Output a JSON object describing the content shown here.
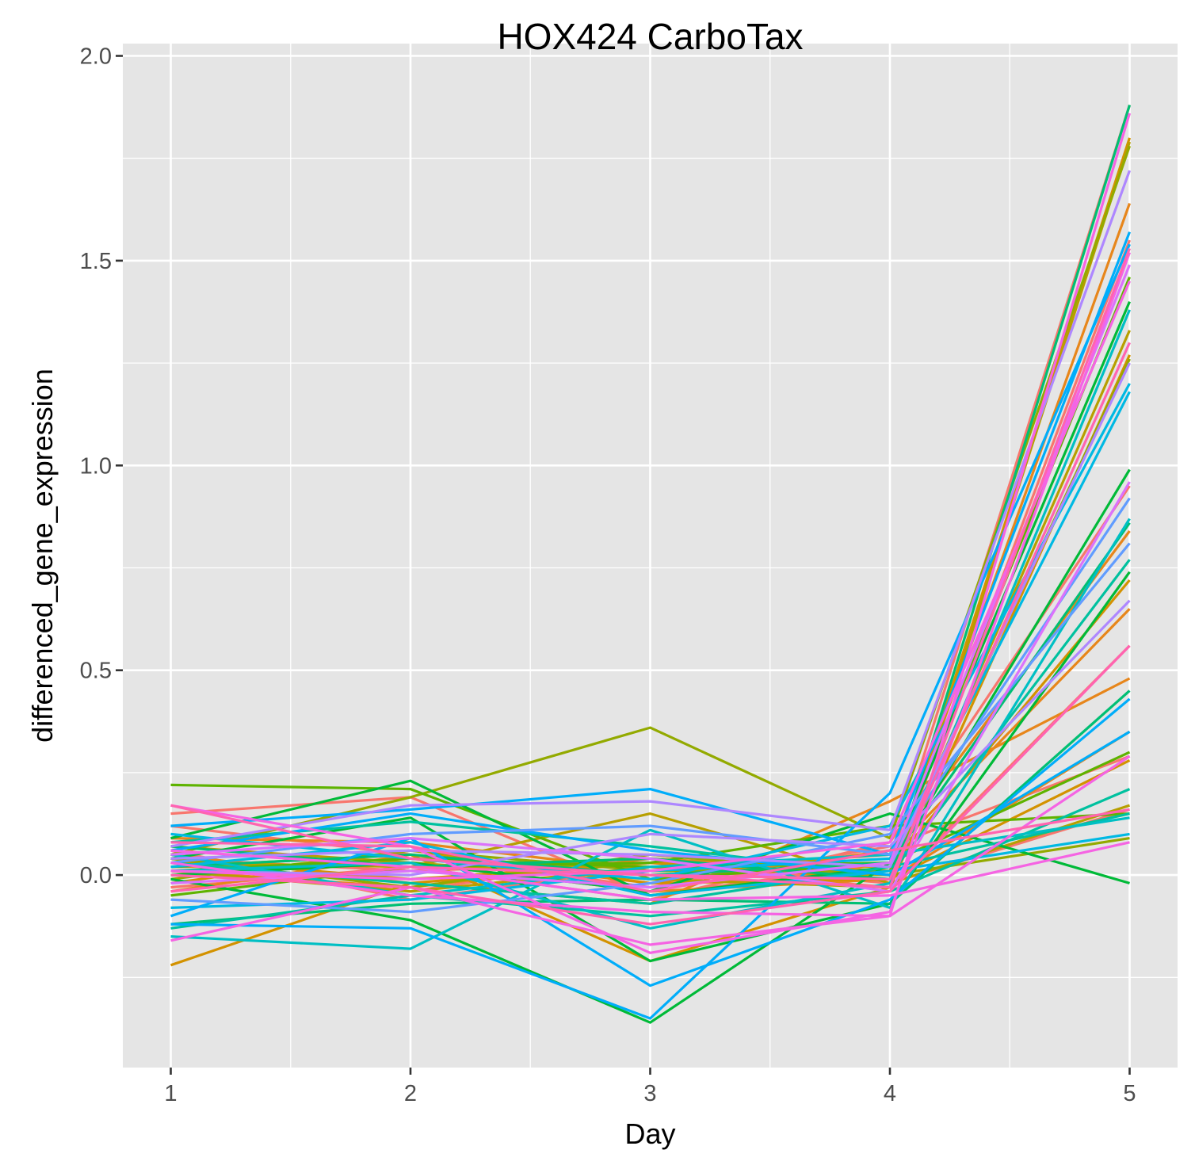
{
  "chart_data": {
    "type": "line",
    "title": "HOX424 CarboTax",
    "xlabel": "Day",
    "ylabel": "differenced_gene_expression",
    "x": [
      1,
      2,
      3,
      4,
      5
    ],
    "x_tick_labels": [
      "1",
      "2",
      "3",
      "4",
      "5"
    ],
    "y_ticks": [
      0.0,
      0.5,
      1.0,
      1.5,
      2.0
    ],
    "y_tick_labels": [
      "0.0",
      "0.5",
      "1.0",
      "1.5",
      "2.0"
    ],
    "xlim": [
      0.8,
      5.2
    ],
    "ylim": [
      -0.47,
      2.03
    ],
    "grid": true,
    "legend": "none",
    "background": "#e5e5e5",
    "series": [
      {
        "color": "#F8766D",
        "values": [
          0.15,
          0.19,
          -0.05,
          0.03,
          1.88
        ]
      },
      {
        "color": "#F8766D",
        "values": [
          0.03,
          -0.04,
          0.05,
          0.0,
          1.55
        ]
      },
      {
        "color": "#F8766D",
        "values": [
          -0.03,
          0.02,
          -0.06,
          0.08,
          0.95
        ]
      },
      {
        "color": "#F8766D",
        "values": [
          0.06,
          -0.06,
          0.02,
          -0.03,
          0.56
        ]
      },
      {
        "color": "#F8766D",
        "values": [
          0.12,
          0.05,
          -0.03,
          0.07,
          0.29
        ]
      },
      {
        "color": "#F8766D",
        "values": [
          0.04,
          0.01,
          0.03,
          -0.02,
          0.16
        ]
      },
      {
        "color": "#E7861B",
        "values": [
          0.01,
          -0.03,
          0.04,
          0.01,
          1.64
        ]
      },
      {
        "color": "#E7861B",
        "values": [
          -0.04,
          0.05,
          -0.02,
          0.06,
          0.84
        ]
      },
      {
        "color": "#E7861B",
        "values": [
          0.05,
          -0.02,
          -0.07,
          0.18,
          0.48
        ]
      },
      {
        "color": "#E7861B",
        "values": [
          0.09,
          0.08,
          0.01,
          0.05,
          0.65
        ]
      },
      {
        "color": "#E7861B",
        "values": [
          0.02,
          0.03,
          -0.04,
          -0.01,
          0.35
        ]
      },
      {
        "color": "#D39200",
        "values": [
          -0.22,
          -0.02,
          0.03,
          -0.01,
          1.8
        ]
      },
      {
        "color": "#D39200",
        "values": [
          0.02,
          0.05,
          -0.21,
          -0.03,
          1.27
        ]
      },
      {
        "color": "#D39200",
        "values": [
          0.04,
          -0.01,
          0.03,
          0.02,
          0.72
        ]
      },
      {
        "color": "#D39200",
        "values": [
          -0.02,
          0.06,
          -0.02,
          -0.01,
          0.28
        ]
      },
      {
        "color": "#B79F00",
        "values": [
          0.07,
          0.03,
          -0.01,
          -0.03,
          1.79
        ]
      },
      {
        "color": "#B79F00",
        "values": [
          0.01,
          -0.04,
          0.02,
          0.0,
          1.33
        ]
      },
      {
        "color": "#B79F00",
        "values": [
          0.03,
          0.02,
          0.15,
          -0.02,
          0.17
        ]
      },
      {
        "color": "#93AA00",
        "values": [
          0.05,
          0.19,
          0.36,
          0.09,
          1.78
        ]
      },
      {
        "color": "#93AA00",
        "values": [
          -0.01,
          0.06,
          0.01,
          0.01,
          1.26
        ]
      },
      {
        "color": "#93AA00",
        "values": [
          0.04,
          -0.03,
          0.05,
          0.0,
          0.09
        ]
      },
      {
        "color": "#5EB300",
        "values": [
          0.22,
          0.21,
          -0.01,
          0.03,
          1.46
        ]
      },
      {
        "color": "#5EB300",
        "values": [
          0.01,
          0.04,
          0.02,
          0.03,
          0.3
        ]
      },
      {
        "color": "#5EB300",
        "values": [
          -0.05,
          0.02,
          0.03,
          0.12,
          0.15
        ]
      },
      {
        "color": "#00BA38",
        "values": [
          0.09,
          0.23,
          -0.05,
          0.02,
          0.99
        ]
      },
      {
        "color": "#00BA38",
        "values": [
          -0.01,
          -0.11,
          -0.36,
          0.03,
          1.4
        ]
      },
      {
        "color": "#00BA38",
        "values": [
          0.04,
          0.14,
          -0.21,
          -0.07,
          0.74
        ]
      },
      {
        "color": "#00BA38",
        "values": [
          0.0,
          0.03,
          -0.04,
          0.15,
          -0.02
        ]
      },
      {
        "color": "#00BF74",
        "values": [
          0.02,
          0.05,
          0.0,
          0.03,
          0.86
        ]
      },
      {
        "color": "#00BF74",
        "values": [
          -0.12,
          -0.07,
          -0.06,
          -0.07,
          0.45
        ]
      },
      {
        "color": "#00BF74",
        "values": [
          0.07,
          0.02,
          0.04,
          -0.01,
          1.88
        ]
      },
      {
        "color": "#00C19F",
        "values": [
          0.08,
          0.13,
          0.07,
          0.0,
          0.77
        ]
      },
      {
        "color": "#00C19F",
        "values": [
          -0.13,
          -0.05,
          -0.1,
          -0.04,
          0.21
        ]
      },
      {
        "color": "#00C19F",
        "values": [
          0.03,
          -0.02,
          -0.07,
          0.02,
          0.15
        ]
      },
      {
        "color": "#00BFC4",
        "values": [
          -0.15,
          -0.18,
          0.11,
          -0.08,
          0.87
        ]
      },
      {
        "color": "#00BFC4",
        "values": [
          0.01,
          0.03,
          -0.13,
          -0.02,
          1.38
        ]
      },
      {
        "color": "#00BFC4",
        "values": [
          0.05,
          -0.05,
          0.02,
          0.05,
          0.14
        ]
      },
      {
        "color": "#00B9E3",
        "values": [
          0.1,
          0.04,
          -0.01,
          0.12,
          1.2
        ]
      },
      {
        "color": "#00B9E3",
        "values": [
          -0.08,
          -0.06,
          0.01,
          0.04,
          1.18
        ]
      },
      {
        "color": "#00B9E3",
        "values": [
          0.02,
          0.08,
          -0.05,
          0.01,
          0.1
        ]
      },
      {
        "color": "#00ADFA",
        "values": [
          0.12,
          0.16,
          0.21,
          0.05,
          1.57
        ]
      },
      {
        "color": "#00ADFA",
        "values": [
          -0.12,
          -0.13,
          -0.35,
          0.2,
          1.54
        ]
      },
      {
        "color": "#00ADFA",
        "values": [
          -0.1,
          0.09,
          -0.27,
          -0.06,
          0.43
        ]
      },
      {
        "color": "#00ADFA",
        "values": [
          0.06,
          0.15,
          0.06,
          0.0,
          0.35
        ]
      },
      {
        "color": "#619CFF",
        "values": [
          0.03,
          0.1,
          0.12,
          0.05,
          0.92
        ]
      },
      {
        "color": "#619CFF",
        "values": [
          -0.06,
          -0.09,
          -0.02,
          0.1,
          0.81
        ]
      },
      {
        "color": "#AE87FF",
        "values": [
          0.07,
          0.17,
          0.18,
          0.11,
          1.72
        ]
      },
      {
        "color": "#AE87FF",
        "values": [
          0.01,
          0.0,
          0.1,
          0.07,
          0.67
        ]
      },
      {
        "color": "#AE87FF",
        "values": [
          0.04,
          0.06,
          0.05,
          0.02,
          1.25
        ]
      },
      {
        "color": "#DB72FB",
        "values": [
          0.05,
          0.09,
          0.04,
          -0.04,
          0.96
        ]
      },
      {
        "color": "#DB72FB",
        "values": [
          -0.02,
          0.01,
          -0.03,
          0.03,
          1.49
        ]
      },
      {
        "color": "#F564E3",
        "values": [
          -0.16,
          -0.03,
          -0.17,
          -0.1,
          1.86
        ]
      },
      {
        "color": "#F564E3",
        "values": [
          0.17,
          0.07,
          -0.19,
          -0.09,
          1.52
        ]
      },
      {
        "color": "#F564E3",
        "values": [
          0.03,
          -0.05,
          -0.09,
          -0.1,
          0.29
        ]
      },
      {
        "color": "#F564E3",
        "values": [
          0.06,
          0.02,
          -0.06,
          -0.05,
          0.08
        ]
      },
      {
        "color": "#F564E3",
        "values": [
          0.01,
          -0.01,
          0.01,
          0.08,
          1.45
        ]
      },
      {
        "color": "#FF64B0",
        "values": [
          0.17,
          0.04,
          0.0,
          -0.03,
          1.53
        ]
      },
      {
        "color": "#FF64B0",
        "values": [
          0.0,
          -0.03,
          -0.12,
          -0.04,
          0.56
        ]
      },
      {
        "color": "#FF64B0",
        "values": [
          0.08,
          0.07,
          -0.04,
          0.06,
          0.16
        ]
      },
      {
        "color": "#FF64B0",
        "values": [
          -0.04,
          0.02,
          0.0,
          -0.01,
          1.3
        ]
      }
    ]
  }
}
